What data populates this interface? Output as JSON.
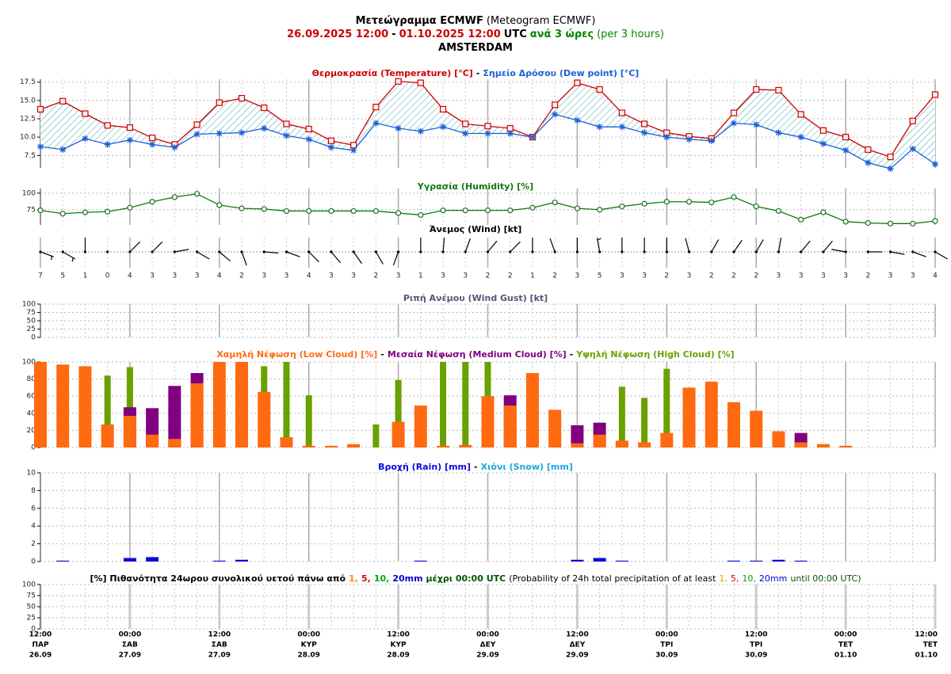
{
  "header": {
    "lines": [
      [
        {
          "text": "Μετεώγραμμα ECMWF",
          "color": "#000000",
          "bold": true
        },
        {
          "text": "(Meteogram ECMWF)",
          "color": "#000000",
          "bold": false
        }
      ],
      [
        {
          "text": "26.09.2025 12:00",
          "color": "#cc0000",
          "bold": true
        },
        {
          "text": "-",
          "color": "#000000",
          "bold": true
        },
        {
          "text": "01.10.2025 12:00",
          "color": "#cc0000",
          "bold": true
        },
        {
          "text": "UTC",
          "color": "#000000",
          "bold": true
        },
        {
          "text": "ανά 3 ώρες",
          "color": "#008800",
          "bold": true
        },
        {
          "text": "(per 3 hours)",
          "color": "#008800",
          "bold": false
        }
      ],
      [
        {
          "text": "AMSTERDAM",
          "color": "#000000",
          "bold": true
        }
      ]
    ]
  },
  "separator": "-",
  "time_axis": {
    "categories": [
      {
        "time": "12:00",
        "day": "ΠΑΡ",
        "date": "26.09"
      },
      null,
      null,
      null,
      {
        "time": "00:00",
        "day": "ΣΑΒ",
        "date": "27.09"
      },
      null,
      null,
      null,
      {
        "time": "12:00",
        "day": "ΣΑΒ",
        "date": "27.09"
      },
      null,
      null,
      null,
      {
        "time": "00:00",
        "day": "ΚΥΡ",
        "date": "28.09"
      },
      null,
      null,
      null,
      {
        "time": "12:00",
        "day": "ΚΥΡ",
        "date": "28.09"
      },
      null,
      null,
      null,
      {
        "time": "00:00",
        "day": "ΔΕΥ",
        "date": "29.09"
      },
      null,
      null,
      null,
      {
        "time": "12:00",
        "day": "ΔΕΥ",
        "date": "29.09"
      },
      null,
      null,
      null,
      {
        "time": "00:00",
        "day": "ΤΡΙ",
        "date": "30.09"
      },
      null,
      null,
      null,
      {
        "time": "12:00",
        "day": "ΤΡΙ",
        "date": "30.09"
      },
      null,
      null,
      null,
      {
        "time": "00:00",
        "day": "ΤΕΤ",
        "date": "01.10"
      },
      null,
      null,
      null,
      {
        "time": "12:00",
        "day": "ΤΕΤ",
        "date": "01.10"
      }
    ]
  },
  "chart_data": [
    {
      "type": "line",
      "fill_between": true,
      "ylim": [
        5.8,
        17.9
      ],
      "yticks": [
        7.5,
        {
          "value": 10,
          "label": "10.0"
        },
        12.5,
        {
          "value": 15,
          "label": "15.0"
        },
        17.5
      ],
      "series": [
        {
          "name": "Θερμοκρασία (Temperature) [°C]",
          "color": "#cc0000",
          "marker": "square",
          "values": [
            13.8,
            14.9,
            13.2,
            11.6,
            11.3,
            9.9,
            9.0,
            11.7,
            14.7,
            15.3,
            14.0,
            11.8,
            11.1,
            9.5,
            8.9,
            14.1,
            17.6,
            17.4,
            13.8,
            11.8,
            11.5,
            11.2,
            10.0,
            14.4,
            17.4,
            16.5,
            13.3,
            11.8,
            10.6,
            10.1,
            9.8,
            13.3,
            16.5,
            16.4,
            13.1,
            10.9,
            10.0,
            8.3,
            7.3,
            12.2,
            15.8
          ]
        },
        {
          "name": "Σημείο Δρόσου (Dew point) [°C]",
          "color": "#1a5fd6",
          "marker": "star",
          "values": [
            8.7,
            8.3,
            9.8,
            9.0,
            9.6,
            9.0,
            8.6,
            10.4,
            10.5,
            10.6,
            11.2,
            10.2,
            9.7,
            8.6,
            8.2,
            11.9,
            11.2,
            10.8,
            11.4,
            10.5,
            10.5,
            10.5,
            10.0,
            13.1,
            12.3,
            11.4,
            11.4,
            10.6,
            10.0,
            9.7,
            9.5,
            11.9,
            11.7,
            10.6,
            10.0,
            9.1,
            8.2,
            6.5,
            5.7,
            8.4,
            6.3
          ]
        }
      ]
    },
    {
      "type": "line",
      "fill_between": false,
      "ylim": [
        52,
        107
      ],
      "yticks": [
        75,
        100
      ],
      "series": [
        {
          "name": "Υγρασία (Humidity) [%]",
          "color": "#117711",
          "marker": "circle",
          "values": [
            74,
            69,
            71,
            72,
            78,
            87,
            94,
            99,
            82,
            77,
            76,
            73,
            73,
            73,
            73,
            73,
            70,
            67,
            74,
            74,
            74,
            74,
            78,
            86,
            77,
            75,
            80,
            84,
            87,
            87,
            86,
            94,
            80,
            73,
            60,
            71,
            57,
            55,
            54,
            54,
            58
          ]
        }
      ]
    },
    {
      "type": "wind",
      "title": "Άνεμος (Wind) [kt]",
      "values": [
        7,
        5,
        1,
        0,
        4,
        3,
        3,
        3,
        4,
        2,
        3,
        3,
        4,
        3,
        3,
        2,
        3,
        1,
        3,
        3,
        2,
        2,
        1,
        2,
        3,
        5,
        3,
        3,
        2,
        3,
        2,
        2,
        2,
        3,
        3,
        3,
        3,
        2,
        3,
        3,
        4
      ],
      "directions": [
        110,
        120,
        0,
        0,
        45,
        45,
        80,
        120,
        130,
        160,
        95,
        110,
        135,
        140,
        145,
        150,
        200,
        0,
        5,
        20,
        40,
        45,
        0,
        340,
        0,
        350,
        0,
        0,
        0,
        345,
        30,
        35,
        30,
        10,
        40,
        40,
        280,
        90,
        100,
        110,
        120
      ]
    },
    {
      "type": "bar",
      "title": "Ριπή Ανέμου (Wind Gust) [kt]",
      "title_color": "#555577",
      "ylim": [
        0,
        100
      ],
      "yticks": [
        0,
        25,
        50,
        75,
        100
      ],
      "series": []
    },
    {
      "type": "bar",
      "ylim": [
        0,
        100
      ],
      "yticks": [
        0,
        20,
        40,
        60,
        80,
        100
      ],
      "series": [
        {
          "name": "Χαμηλή Νέφωση (Low Cloud) [%]",
          "color": "#ff6a10",
          "values": [
            100,
            97,
            95,
            27,
            37,
            15,
            10,
            75,
            100,
            100,
            65,
            12,
            2,
            2,
            4,
            0,
            30,
            49,
            2,
            3,
            60,
            49,
            87,
            44,
            5,
            15,
            8,
            6,
            17,
            70,
            77,
            53,
            43,
            19,
            6,
            4,
            2,
            0,
            0,
            0,
            0
          ]
        },
        {
          "name": "Μεσαία Νέφωση (Medium Cloud) [%]",
          "color": "#800080",
          "values": [
            0,
            0,
            0,
            0,
            47,
            46,
            72,
            87,
            0,
            0,
            0,
            0,
            0,
            0,
            0,
            0,
            0,
            0,
            0,
            0,
            0,
            61,
            0,
            0,
            26,
            29,
            0,
            0,
            0,
            0,
            0,
            0,
            0,
            0,
            17,
            0,
            0,
            0,
            0,
            0,
            0
          ]
        },
        {
          "name": "Υψηλή Νέφωση (High Cloud) [%]",
          "color": "#6aa000",
          "values": [
            0,
            0,
            0,
            84,
            94,
            0,
            0,
            0,
            0,
            0,
            95,
            100,
            61,
            0,
            0,
            27,
            79,
            0,
            100,
            100,
            100,
            0,
            0,
            0,
            0,
            0,
            71,
            58,
            92,
            0,
            0,
            0,
            0,
            0,
            0,
            0,
            0,
            0,
            0,
            0,
            0
          ]
        }
      ]
    },
    {
      "type": "bar",
      "ylim": [
        0,
        10
      ],
      "yticks": [
        0,
        2,
        4,
        6,
        8,
        10
      ],
      "series": [
        {
          "name": "Βροχή (Rain) [mm]",
          "color": "#0a0ad8",
          "values": [
            0,
            0.1,
            0,
            0,
            0.4,
            0.5,
            0,
            0,
            0.1,
            0.2,
            0,
            0,
            0,
            0,
            0,
            0,
            0,
            0.1,
            0,
            0,
            0,
            0,
            0,
            0,
            0.2,
            0.4,
            0.1,
            0,
            0,
            0,
            0,
            0.1,
            0.1,
            0.2,
            0.1,
            0,
            0,
            0,
            0,
            0,
            0
          ]
        },
        {
          "name": "Χιόνι (Snow) [mm]",
          "color": "#1aa7e0",
          "values": [
            0,
            0,
            0,
            0,
            0,
            0,
            0,
            0,
            0,
            0,
            0,
            0,
            0,
            0,
            0,
            0,
            0,
            0,
            0,
            0,
            0,
            0,
            0,
            0,
            0,
            0,
            0,
            0,
            0,
            0,
            0,
            0,
            0,
            0,
            0,
            0,
            0,
            0,
            0,
            0,
            0
          ]
        }
      ]
    },
    {
      "type": "bar",
      "ylim": [
        0,
        100
      ],
      "yticks": [
        0,
        25,
        50,
        75,
        100
      ],
      "series": [],
      "title_parts": [
        {
          "text": "[%] Πιθανότητα 24ωρου συνολικού υετού πάνω από",
          "color": "#000000",
          "bold": true
        },
        {
          "text": "1,",
          "color": "#ff8c00",
          "bold": true
        },
        {
          "text": "5,",
          "color": "#dd0000",
          "bold": true
        },
        {
          "text": "10,",
          "color": "#00aa00",
          "bold": true
        },
        {
          "text": "20mm",
          "color": "#0000cc",
          "bold": true
        },
        {
          "text": "μέχρι 00:00 UTC",
          "color": "#005500",
          "bold": true
        },
        {
          "text": "(Probability of 24h total precipitation of at least",
          "color": "#000000",
          "bold": false
        },
        {
          "text": "1,",
          "color": "#ff8c00",
          "bold": false
        },
        {
          "text": "5,",
          "color": "#dd0000",
          "bold": false
        },
        {
          "text": "10,",
          "color": "#00aa00",
          "bold": false
        },
        {
          "text": "20mm",
          "color": "#0000cc",
          "bold": false
        },
        {
          "text": "until 00:00 UTC)",
          "color": "#005500",
          "bold": false
        }
      ]
    }
  ]
}
